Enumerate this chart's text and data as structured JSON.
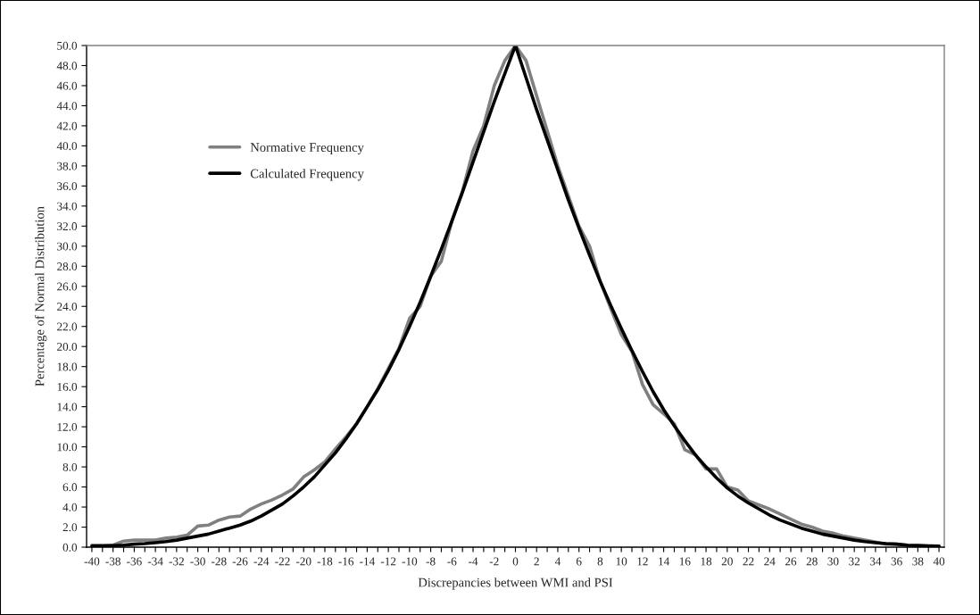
{
  "chart_data": {
    "type": "line",
    "xlabel": "Discrepancies between WMI and PSI",
    "ylabel": "Percentage of Normal Distribution",
    "categories": [
      "-40",
      null,
      "-38",
      null,
      "-36",
      null,
      "-34",
      null,
      "-32",
      null,
      "-30",
      null,
      "-28",
      null,
      "-26",
      null,
      "-24",
      null,
      "-22",
      null,
      "-20",
      null,
      "-18",
      null,
      "-16",
      null,
      "-14",
      null,
      "-12",
      null,
      "-10",
      null,
      "-8",
      null,
      "-6",
      null,
      "-4",
      null,
      "-2",
      null,
      "0",
      null,
      "2",
      null,
      "4",
      null,
      "6",
      null,
      "8",
      null,
      "10",
      null,
      "12",
      null,
      "14",
      null,
      "16",
      null,
      "18",
      null,
      "20",
      null,
      "22",
      null,
      "24",
      null,
      "26",
      null,
      "28",
      null,
      "30",
      null,
      "32",
      null,
      "34",
      null,
      "36",
      null,
      "38",
      null,
      "40"
    ],
    "series": [
      {
        "name": "Normative Frequency",
        "color": "#808080",
        "values": [
          0.2,
          0.2,
          0.2,
          0.6,
          0.7,
          0.7,
          0.7,
          0.9,
          1.0,
          1.2,
          2.1,
          2.2,
          2.7,
          3.0,
          3.1,
          3.8,
          4.3,
          4.7,
          5.2,
          5.8,
          7.0,
          7.7,
          8.5,
          9.8,
          11.0,
          12.3,
          14.0,
          15.8,
          17.8,
          19.8,
          22.8,
          24.0,
          27.0,
          28.5,
          32.5,
          35.5,
          39.5,
          42.0,
          46.0,
          48.5,
          50.0,
          48.5,
          45.0,
          41.5,
          38.0,
          35.0,
          32.0,
          30.0,
          26.5,
          23.8,
          21.2,
          19.5,
          16.2,
          14.2,
          13.3,
          12.3,
          9.7,
          9.2,
          7.8,
          7.8,
          6.0,
          5.7,
          4.6,
          4.2,
          3.8,
          3.3,
          2.8,
          2.3,
          2.0,
          1.6,
          1.4,
          1.1,
          0.9,
          0.7,
          0.5,
          0.3,
          0.3,
          0.2,
          0.2,
          0.15,
          0.1
        ]
      },
      {
        "name": "Calculated Frequency",
        "color": "#000000",
        "values": [
          0.1,
          0.1,
          0.15,
          0.2,
          0.3,
          0.35,
          0.45,
          0.55,
          0.7,
          0.9,
          1.1,
          1.3,
          1.6,
          1.9,
          2.2,
          2.6,
          3.1,
          3.7,
          4.3,
          5.1,
          6.0,
          7.0,
          8.2,
          9.4,
          10.8,
          12.3,
          14.0,
          15.7,
          17.6,
          19.7,
          22.0,
          24.4,
          27.0,
          29.7,
          32.5,
          35.4,
          38.4,
          41.4,
          44.4,
          47.2,
          50.0,
          46.8,
          43.6,
          40.6,
          37.6,
          34.6,
          31.8,
          29.1,
          26.5,
          24.1,
          21.8,
          19.6,
          17.5,
          15.5,
          13.7,
          12.1,
          10.6,
          9.2,
          8.0,
          6.9,
          5.9,
          5.1,
          4.4,
          3.8,
          3.2,
          2.7,
          2.3,
          1.9,
          1.6,
          1.3,
          1.1,
          0.9,
          0.7,
          0.55,
          0.45,
          0.35,
          0.3,
          0.2,
          0.15,
          0.1,
          0.1
        ]
      }
    ],
    "ylim": [
      0,
      50
    ],
    "yticks": [
      {
        "value": 0,
        "label": "0.0"
      },
      {
        "value": 2,
        "label": "2.0"
      },
      {
        "value": 4,
        "label": "4.0"
      },
      {
        "value": 6,
        "label": "6.0"
      },
      {
        "value": 8,
        "label": "8.0"
      },
      {
        "value": 10,
        "label": "10.0"
      },
      {
        "value": 12,
        "label": "12.0"
      },
      {
        "value": 14,
        "label": "14.0"
      },
      {
        "value": 16,
        "label": "16.0"
      },
      {
        "value": 18,
        "label": "18.0"
      },
      {
        "value": 20,
        "label": "20.0"
      },
      {
        "value": 22,
        "label": "22.0"
      },
      {
        "value": 24,
        "label": "24.0"
      },
      {
        "value": 26,
        "label": "26.0"
      },
      {
        "value": 28,
        "label": "28.0"
      },
      {
        "value": 30,
        "label": "30.0"
      },
      {
        "value": 32,
        "label": "32.0"
      },
      {
        "value": 34,
        "label": "34.0"
      },
      {
        "value": 36,
        "label": "36.0"
      },
      {
        "value": 38,
        "label": "38.0"
      },
      {
        "value": 40,
        "label": "40.0"
      },
      {
        "value": 42,
        "label": "42.0"
      },
      {
        "value": 44,
        "label": "44.0"
      },
      {
        "value": 46,
        "label": "46.0"
      },
      {
        "value": 48,
        "label": "48.0"
      },
      {
        "value": 50,
        "label": "50.0"
      }
    ],
    "grid": false,
    "legend": "top left",
    "marker": "none",
    "line_style": "solid"
  }
}
